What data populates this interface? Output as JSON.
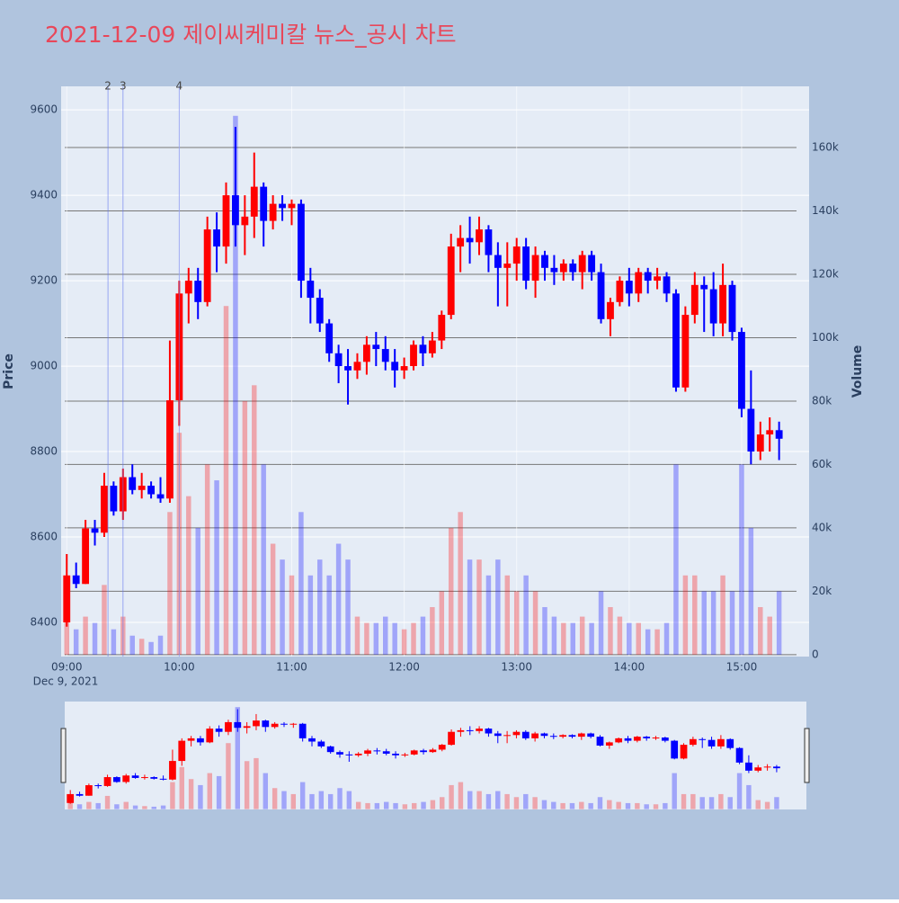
{
  "chart_data": {
    "type": "candlestick",
    "title": "2021-12-09 제이씨케미칼 뉴스_공시 차트",
    "y_label": "Price",
    "y2_label": "Volume",
    "x_date_label": "Dec 9, 2021",
    "increasing_color": "#ff0000",
    "decreasing_color": "#0000ff",
    "x": [
      "2021-12-09 09:00",
      "2021-12-09 09:05",
      "2021-12-09 09:10",
      "2021-12-09 09:15",
      "2021-12-09 09:20",
      "2021-12-09 09:25",
      "2021-12-09 09:30",
      "2021-12-09 09:35",
      "2021-12-09 09:40",
      "2021-12-09 09:45",
      "2021-12-09 09:50",
      "2021-12-09 09:55",
      "2021-12-09 10:00",
      "2021-12-09 10:05",
      "2021-12-09 10:10",
      "2021-12-09 10:15",
      "2021-12-09 10:20",
      "2021-12-09 10:25",
      "2021-12-09 10:30",
      "2021-12-09 10:35",
      "2021-12-09 10:40",
      "2021-12-09 10:45",
      "2021-12-09 10:50",
      "2021-12-09 10:55",
      "2021-12-09 11:00",
      "2021-12-09 11:05",
      "2021-12-09 11:10",
      "2021-12-09 11:15",
      "2021-12-09 11:20",
      "2021-12-09 11:25",
      "2021-12-09 11:30",
      "2021-12-09 11:35",
      "2021-12-09 11:40",
      "2021-12-09 11:45",
      "2021-12-09 11:50",
      "2021-12-09 11:55",
      "2021-12-09 12:00",
      "2021-12-09 12:05",
      "2021-12-09 12:10",
      "2021-12-09 12:15",
      "2021-12-09 12:20",
      "2021-12-09 12:25",
      "2021-12-09 12:30",
      "2021-12-09 12:35",
      "2021-12-09 12:40",
      "2021-12-09 12:45",
      "2021-12-09 12:50",
      "2021-12-09 12:55",
      "2021-12-09 13:00",
      "2021-12-09 13:05",
      "2021-12-09 13:10",
      "2021-12-09 13:15",
      "2021-12-09 13:20",
      "2021-12-09 13:25",
      "2021-12-09 13:30",
      "2021-12-09 13:35",
      "2021-12-09 13:40",
      "2021-12-09 13:45",
      "2021-12-09 13:50",
      "2021-12-09 13:55",
      "2021-12-09 14:00",
      "2021-12-09 14:05",
      "2021-12-09 14:10",
      "2021-12-09 14:15",
      "2021-12-09 14:20",
      "2021-12-09 14:25",
      "2021-12-09 14:30",
      "2021-12-09 14:35",
      "2021-12-09 14:40",
      "2021-12-09 14:45",
      "2021-12-09 14:50",
      "2021-12-09 14:55",
      "2021-12-09 15:00",
      "2021-12-09 15:05",
      "2021-12-09 15:10",
      "2021-12-09 15:15",
      "2021-12-09 15:20"
    ],
    "open": [
      8400,
      8510,
      8490,
      8620,
      8610,
      8720,
      8660,
      8740,
      8710,
      8720,
      8700,
      8690,
      8920,
      9170,
      9200,
      9150,
      9320,
      9280,
      9400,
      9330,
      9350,
      9420,
      9340,
      9380,
      9370,
      9380,
      9200,
      9160,
      9100,
      9030,
      9000,
      8990,
      9010,
      9050,
      9040,
      9010,
      8990,
      9000,
      9050,
      9030,
      9060,
      9120,
      9280,
      9300,
      9290,
      9320,
      9260,
      9230,
      9240,
      9280,
      9200,
      9260,
      9230,
      9220,
      9240,
      9220,
      9260,
      9220,
      9110,
      9150,
      9200,
      9170,
      9220,
      9200,
      9210,
      9170,
      8950,
      9120,
      9190,
      9180,
      9100,
      9190,
      9080,
      8900,
      8800,
      8840,
      8850
    ],
    "high": [
      8560,
      8540,
      8640,
      8640,
      8750,
      8730,
      8760,
      8770,
      8750,
      8730,
      8740,
      9060,
      9200,
      9230,
      9230,
      9350,
      9360,
      9430,
      9560,
      9400,
      9500,
      9430,
      9400,
      9400,
      9390,
      9390,
      9230,
      9180,
      9110,
      9050,
      9040,
      9030,
      9070,
      9080,
      9070,
      9040,
      9020,
      9060,
      9070,
      9080,
      9130,
      9310,
      9330,
      9350,
      9350,
      9330,
      9290,
      9290,
      9300,
      9300,
      9280,
      9270,
      9260,
      9250,
      9250,
      9270,
      9270,
      9240,
      9160,
      9210,
      9230,
      9230,
      9230,
      9230,
      9220,
      9180,
      9140,
      9220,
      9210,
      9220,
      9240,
      9200,
      9090,
      8990,
      8870,
      8880,
      8870
    ],
    "low": [
      8390,
      8480,
      8490,
      8580,
      8600,
      8650,
      8640,
      8700,
      8690,
      8690,
      8680,
      8680,
      8860,
      9100,
      9110,
      9140,
      9220,
      9240,
      9280,
      9260,
      9300,
      9280,
      9320,
      9340,
      9330,
      9160,
      9100,
      9080,
      9010,
      8960,
      8910,
      8970,
      8980,
      9000,
      8990,
      8950,
      8970,
      8990,
      9000,
      9020,
      9040,
      9110,
      9220,
      9240,
      9260,
      9220,
      9140,
      9140,
      9200,
      9180,
      9160,
      9200,
      9190,
      9200,
      9200,
      9180,
      9200,
      9100,
      9070,
      9140,
      9140,
      9150,
      9170,
      9180,
      9150,
      8940,
      8940,
      9100,
      9080,
      9070,
      9070,
      9060,
      8880,
      8770,
      8780,
      8800,
      8780
    ],
    "close": [
      8510,
      8490,
      8620,
      8610,
      8720,
      8660,
      8740,
      8710,
      8720,
      8700,
      8690,
      8920,
      9170,
      9200,
      9150,
      9320,
      9280,
      9400,
      9330,
      9350,
      9420,
      9340,
      9380,
      9370,
      9380,
      9200,
      9160,
      9100,
      9030,
      9000,
      8990,
      9010,
      9050,
      9040,
      9010,
      8990,
      9000,
      9050,
      9030,
      9060,
      9120,
      9280,
      9300,
      9290,
      9320,
      9260,
      9230,
      9240,
      9280,
      9200,
      9260,
      9230,
      9220,
      9240,
      9220,
      9260,
      9220,
      9110,
      9150,
      9200,
      9170,
      9220,
      9200,
      9210,
      9170,
      8950,
      9120,
      9190,
      9180,
      9100,
      9190,
      9080,
      8900,
      8800,
      8840,
      8850,
      8830
    ],
    "volume": [
      15000,
      8000,
      12000,
      10000,
      22000,
      8000,
      12000,
      6000,
      5000,
      4000,
      6000,
      45000,
      70000,
      50000,
      40000,
      60000,
      55000,
      110000,
      170000,
      80000,
      85000,
      60000,
      35000,
      30000,
      25000,
      45000,
      25000,
      30000,
      25000,
      35000,
      30000,
      12000,
      10000,
      10000,
      12000,
      10000,
      8000,
      10000,
      12000,
      15000,
      20000,
      40000,
      45000,
      30000,
      30000,
      25000,
      30000,
      25000,
      20000,
      25000,
      20000,
      15000,
      12000,
      10000,
      10000,
      12000,
      10000,
      20000,
      15000,
      12000,
      10000,
      10000,
      8000,
      8000,
      10000,
      60000,
      25000,
      25000,
      20000,
      20000,
      25000,
      20000,
      60000,
      40000,
      15000,
      12000,
      20000
    ],
    "annotations": [
      {
        "x": "2021-12-09 09:22",
        "text": "2"
      },
      {
        "x": "2021-12-09 09:30",
        "text": "3"
      },
      {
        "x": "2021-12-09 10:00",
        "text": "4"
      }
    ],
    "xlim": [
      "2021-12-09 08:57",
      "2021-12-09 15:36"
    ],
    "xticks": [
      {
        "value": "2021-12-09 09:00",
        "label": "09:00"
      },
      {
        "value": "2021-12-09 10:00",
        "label": "10:00"
      },
      {
        "value": "2021-12-09 11:00",
        "label": "11:00"
      },
      {
        "value": "2021-12-09 12:00",
        "label": "12:00"
      },
      {
        "value": "2021-12-09 13:00",
        "label": "13:00"
      },
      {
        "value": "2021-12-09 14:00",
        "label": "14:00"
      },
      {
        "value": "2021-12-09 15:00",
        "label": "15:00"
      }
    ],
    "ylim": [
      8320,
      9655
    ],
    "yticks": [
      8400,
      8600,
      8800,
      9000,
      9200,
      9400,
      9600
    ],
    "y2lim": [
      -600,
      179300
    ],
    "y2ticks": [
      0,
      {
        "value": 20000,
        "label": "20k"
      },
      {
        "value": 40000,
        "label": "40k"
      },
      {
        "value": 60000,
        "label": "60k"
      },
      {
        "value": 80000,
        "label": "80k"
      },
      {
        "value": 100000,
        "label": "100k"
      },
      {
        "value": 120000,
        "label": "120k"
      },
      {
        "value": 140000,
        "label": "140k"
      },
      {
        "value": 160000,
        "label": "160k"
      }
    ],
    "grid": true,
    "rangeslider": true
  }
}
